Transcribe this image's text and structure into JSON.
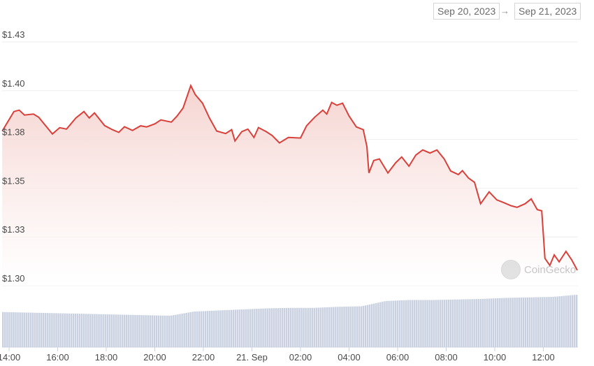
{
  "range": {
    "from": "Sep 20, 2023",
    "arrow": "→",
    "to": "Sep 21, 2023"
  },
  "watermark": "CoinGecko",
  "chart_data": {
    "type": "line",
    "line_color": "#d9403a",
    "fill_color": "#f6d8d5",
    "volume_color": "#c9d1e0",
    "grid": true,
    "ylim": [
      1.3,
      1.425
    ],
    "y_ticks": [
      {
        "value": 1.425,
        "label": "$1.43"
      },
      {
        "value": 1.4,
        "label": "$1.40"
      },
      {
        "value": 1.375,
        "label": "$1.38"
      },
      {
        "value": 1.35,
        "label": "$1.35"
      },
      {
        "value": 1.325,
        "label": "$1.33"
      },
      {
        "value": 1.3,
        "label": "$1.30"
      }
    ],
    "x_ticks": [
      {
        "time": "14:00",
        "label": "14:00"
      },
      {
        "time": "16:00",
        "label": "16:00"
      },
      {
        "time": "18:00",
        "label": "18:00"
      },
      {
        "time": "20:00",
        "label": "20:00"
      },
      {
        "time": "22:00",
        "label": "22:00"
      },
      {
        "time": "00:00",
        "label": "21. Sep"
      },
      {
        "time": "02:00",
        "label": "02:00"
      },
      {
        "time": "04:00",
        "label": "04:00"
      },
      {
        "time": "06:00",
        "label": "06:00"
      },
      {
        "time": "08:00",
        "label": "08:00"
      },
      {
        "time": "10:00",
        "label": "10:00"
      },
      {
        "time": "12:00",
        "label": "12:00"
      }
    ],
    "price": [
      [
        "13:43",
        1.3793
      ],
      [
        "14:12",
        1.3893
      ],
      [
        "14:25",
        1.39
      ],
      [
        "14:38",
        1.3875
      ],
      [
        "15:00",
        1.388
      ],
      [
        "15:13",
        1.3864
      ],
      [
        "15:47",
        1.3778
      ],
      [
        "16:05",
        1.381
      ],
      [
        "16:22",
        1.3803
      ],
      [
        "16:45",
        1.386
      ],
      [
        "17:05",
        1.3893
      ],
      [
        "17:18",
        1.386
      ],
      [
        "17:31",
        1.3886
      ],
      [
        "17:56",
        1.3821
      ],
      [
        "18:15",
        1.38
      ],
      [
        "18:31",
        1.3786
      ],
      [
        "18:45",
        1.3815
      ],
      [
        "19:05",
        1.3796
      ],
      [
        "19:25",
        1.382
      ],
      [
        "19:40",
        1.3814
      ],
      [
        "20:00",
        1.383
      ],
      [
        "20:15",
        1.385
      ],
      [
        "20:41",
        1.3839
      ],
      [
        "20:55",
        1.387
      ],
      [
        "21:10",
        1.3911
      ],
      [
        "21:29",
        1.4026
      ],
      [
        "21:40",
        1.398
      ],
      [
        "21:58",
        1.3936
      ],
      [
        "22:15",
        1.386
      ],
      [
        "22:33",
        1.3793
      ],
      [
        "22:55",
        1.378
      ],
      [
        "23:10",
        1.38
      ],
      [
        "23:18",
        1.3742
      ],
      [
        "23:35",
        1.379
      ],
      [
        "23:50",
        1.3803
      ],
      [
        "00:05",
        1.376
      ],
      [
        "00:16",
        1.3811
      ],
      [
        "00:35",
        1.379
      ],
      [
        "00:50",
        1.377
      ],
      [
        "01:08",
        1.3732
      ],
      [
        "01:30",
        1.376
      ],
      [
        "02:00",
        1.3757
      ],
      [
        "02:15",
        1.382
      ],
      [
        "02:35",
        1.3864
      ],
      [
        "02:55",
        1.39
      ],
      [
        "03:05",
        1.388
      ],
      [
        "03:17",
        1.394
      ],
      [
        "03:30",
        1.3925
      ],
      [
        "03:44",
        1.3936
      ],
      [
        "04:00",
        1.387
      ],
      [
        "04:18",
        1.3814
      ],
      [
        "04:35",
        1.38
      ],
      [
        "04:44",
        1.3714
      ],
      [
        "04:49",
        1.3578
      ],
      [
        "05:01",
        1.3642
      ],
      [
        "05:15",
        1.365
      ],
      [
        "05:36",
        1.3578
      ],
      [
        "05:55",
        1.363
      ],
      [
        "06:10",
        1.366
      ],
      [
        "06:28",
        1.3613
      ],
      [
        "06:45",
        1.367
      ],
      [
        "07:02",
        1.3696
      ],
      [
        "07:20",
        1.368
      ],
      [
        "07:37",
        1.3696
      ],
      [
        "07:55",
        1.365
      ],
      [
        "08:11",
        1.3588
      ],
      [
        "08:30",
        1.357
      ],
      [
        "08:40",
        1.359
      ],
      [
        "08:55",
        1.3552
      ],
      [
        "09:10",
        1.353
      ],
      [
        "09:25",
        1.342
      ],
      [
        "09:46",
        1.3481
      ],
      [
        "10:05",
        1.344
      ],
      [
        "10:21",
        1.3427
      ],
      [
        "10:40",
        1.341
      ],
      [
        "10:55",
        1.3402
      ],
      [
        "11:15",
        1.342
      ],
      [
        "11:30",
        1.3445
      ],
      [
        "11:45",
        1.339
      ],
      [
        "11:56",
        1.3384
      ],
      [
        "12:04",
        1.314
      ],
      [
        "12:16",
        1.3104
      ],
      [
        "12:27",
        1.3158
      ],
      [
        "12:39",
        1.3122
      ],
      [
        "12:56",
        1.3176
      ],
      [
        "13:10",
        1.3133
      ],
      [
        "13:24",
        1.3079
      ]
    ],
    "volume_relative": [
      0.67,
      0.66,
      0.65,
      0.64,
      0.63,
      0.62,
      0.61,
      0.6,
      0.68,
      0.7,
      0.72,
      0.74,
      0.75,
      0.75,
      0.77,
      0.78,
      0.88,
      0.9,
      0.9,
      0.91,
      0.92,
      0.94,
      0.95,
      0.96,
      1.0
    ]
  }
}
